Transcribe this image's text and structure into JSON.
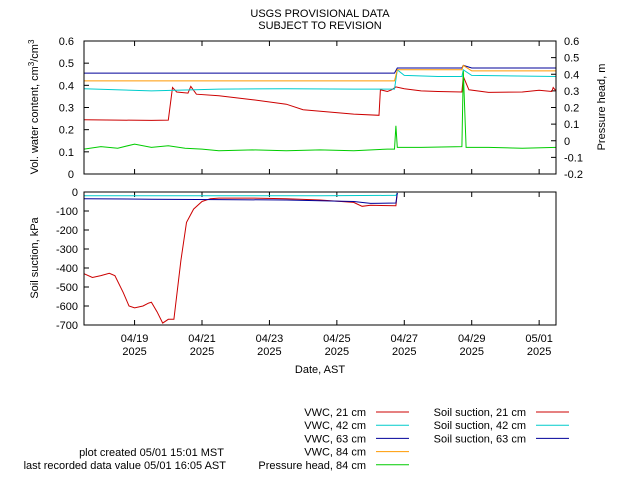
{
  "header": {
    "title_line1": "USGS PROVISIONAL DATA",
    "title_line2": "SUBJECT TO REVISION"
  },
  "footer": {
    "plot_created": "plot created 05/01 15:01 MST",
    "last_value": "last recorded data value 05/01 16:05 AST"
  },
  "chart_data": [
    {
      "type": "line",
      "panel": "top",
      "ylabel": "Vol. water content, cm³/cm³",
      "y2label": "Pressure head, m",
      "ylim": [
        0,
        0.6
      ],
      "y2lim": [
        -0.2,
        0.6
      ],
      "y_ticks": [
        "0",
        "0.1",
        "0.2",
        "0.3",
        "0.4",
        "0.5",
        "0.6"
      ],
      "y2_ticks": [
        "-0.2",
        "-0.1",
        "0",
        "0.1",
        "0.2",
        "0.3",
        "0.4",
        "0.5",
        "0.6"
      ],
      "xlim": [
        "2025-04-17T12:00",
        "2025-05-01T12:00"
      ],
      "grid": false,
      "series": [
        {
          "name": "VWC, 21 cm",
          "axis": "left",
          "color": "#cc0000",
          "points": [
            [
              "2025-04-17T12:00",
              0.245
            ],
            [
              "2025-04-18T12:00",
              0.243
            ],
            [
              "2025-04-19T12:00",
              0.242
            ],
            [
              "2025-04-20T00:00",
              0.243
            ],
            [
              "2025-04-20T03:00",
              0.39
            ],
            [
              "2025-04-20T06:00",
              0.37
            ],
            [
              "2025-04-20T14:00",
              0.365
            ],
            [
              "2025-04-20T16:00",
              0.395
            ],
            [
              "2025-04-20T20:00",
              0.36
            ],
            [
              "2025-04-21T12:00",
              0.353
            ],
            [
              "2025-04-22T12:00",
              0.335
            ],
            [
              "2025-04-23T12:00",
              0.315
            ],
            [
              "2025-04-24T00:00",
              0.29
            ],
            [
              "2025-04-25T12:00",
              0.27
            ],
            [
              "2025-04-26T06:00",
              0.265
            ],
            [
              "2025-04-26T07:00",
              0.38
            ],
            [
              "2025-04-26T12:00",
              0.372
            ],
            [
              "2025-04-26T15:00",
              0.38
            ],
            [
              "2025-04-26T18:00",
              0.393
            ],
            [
              "2025-04-27T00:00",
              0.385
            ],
            [
              "2025-04-27T12:00",
              0.375
            ],
            [
              "2025-04-28T00:00",
              0.372
            ],
            [
              "2025-04-28T17:00",
              0.37
            ],
            [
              "2025-04-28T18:00",
              0.44
            ],
            [
              "2025-04-28T22:00",
              0.38
            ],
            [
              "2025-04-29T12:00",
              0.368
            ],
            [
              "2025-04-30T12:00",
              0.37
            ],
            [
              "2025-05-01T00:00",
              0.378
            ],
            [
              "2025-05-01T09:00",
              0.372
            ],
            [
              "2025-05-01T10:00",
              0.39
            ],
            [
              "2025-05-01T12:00",
              0.375
            ]
          ]
        },
        {
          "name": "VWC, 42 cm",
          "axis": "left",
          "color": "#00cccc",
          "points": [
            [
              "2025-04-17T12:00",
              0.385
            ],
            [
              "2025-04-19T12:00",
              0.375
            ],
            [
              "2025-04-21T12:00",
              0.383
            ],
            [
              "2025-04-23T12:00",
              0.385
            ],
            [
              "2025-04-25T12:00",
              0.383
            ],
            [
              "2025-04-26T17:00",
              0.383
            ],
            [
              "2025-04-26T19:00",
              0.47
            ],
            [
              "2025-04-27T00:00",
              0.445
            ],
            [
              "2025-04-28T00:00",
              0.44
            ],
            [
              "2025-04-28T17:00",
              0.44
            ],
            [
              "2025-04-28T18:00",
              0.47
            ],
            [
              "2025-04-29T00:00",
              0.445
            ],
            [
              "2025-05-01T12:00",
              0.44
            ]
          ]
        },
        {
          "name": "VWC, 63 cm",
          "axis": "left",
          "color": "#000099",
          "points": [
            [
              "2025-04-17T12:00",
              0.455
            ],
            [
              "2025-04-18T06:00",
              0.455
            ],
            [
              "2025-04-25T12:00",
              0.455
            ],
            [
              "2025-04-26T17:00",
              0.455
            ],
            [
              "2025-04-26T19:00",
              0.478
            ],
            [
              "2025-04-28T17:00",
              0.478
            ],
            [
              "2025-04-28T18:00",
              0.49
            ],
            [
              "2025-04-29T00:00",
              0.478
            ],
            [
              "2025-05-01T12:00",
              0.478
            ]
          ]
        },
        {
          "name": "VWC, 84 cm",
          "axis": "left",
          "color": "#ff9900",
          "points": [
            [
              "2025-04-17T12:00",
              0.42
            ],
            [
              "2025-04-26T17:00",
              0.42
            ],
            [
              "2025-04-26T19:00",
              0.47
            ],
            [
              "2025-04-28T17:00",
              0.47
            ],
            [
              "2025-04-28T18:00",
              0.49
            ],
            [
              "2025-04-29T00:00",
              0.465
            ],
            [
              "2025-05-01T12:00",
              0.465
            ]
          ]
        },
        {
          "name": "Pressure head, 84 cm",
          "axis": "right",
          "color": "#00cc00",
          "points": [
            [
              "2025-04-17T12:00",
              -0.05
            ],
            [
              "2025-04-18T00:00",
              -0.035
            ],
            [
              "2025-04-18T12:00",
              -0.045
            ],
            [
              "2025-04-19T00:00",
              -0.02
            ],
            [
              "2025-04-19T12:00",
              -0.04
            ],
            [
              "2025-04-20T00:00",
              -0.03
            ],
            [
              "2025-04-20T12:00",
              -0.045
            ],
            [
              "2025-04-21T00:00",
              -0.05
            ],
            [
              "2025-04-21T12:00",
              -0.06
            ],
            [
              "2025-04-22T12:00",
              -0.055
            ],
            [
              "2025-04-23T12:00",
              -0.06
            ],
            [
              "2025-04-24T12:00",
              -0.055
            ],
            [
              "2025-04-25T12:00",
              -0.06
            ],
            [
              "2025-04-26T12:00",
              -0.05
            ],
            [
              "2025-04-26T17:00",
              -0.05
            ],
            [
              "2025-04-26T18:00",
              0.09
            ],
            [
              "2025-04-26T19:00",
              -0.04
            ],
            [
              "2025-04-27T12:00",
              -0.04
            ],
            [
              "2025-04-28T17:00",
              -0.035
            ],
            [
              "2025-04-28T18:00",
              0.42
            ],
            [
              "2025-04-28T20:00",
              -0.04
            ],
            [
              "2025-04-29T12:00",
              -0.04
            ],
            [
              "2025-04-30T12:00",
              -0.045
            ],
            [
              "2025-05-01T12:00",
              -0.04
            ]
          ]
        }
      ]
    },
    {
      "type": "line",
      "panel": "bottom",
      "ylabel": "Soil suction, kPa",
      "xlabel": "Date, AST",
      "ylim": [
        -700,
        0
      ],
      "y_ticks": [
        "0",
        "-100",
        "-200",
        "-300",
        "-400",
        "-500",
        "-600",
        "-700"
      ],
      "xlim": [
        "2025-04-17T12:00",
        "2025-05-01T12:00"
      ],
      "x_ticks": [
        {
          "date": "2025-04-19",
          "line1": "04/19",
          "line2": "2025"
        },
        {
          "date": "2025-04-21",
          "line1": "04/21",
          "line2": "2025"
        },
        {
          "date": "2025-04-23",
          "line1": "04/23",
          "line2": "2025"
        },
        {
          "date": "2025-04-25",
          "line1": "04/25",
          "line2": "2025"
        },
        {
          "date": "2025-04-27",
          "line1": "04/27",
          "line2": "2025"
        },
        {
          "date": "2025-04-29",
          "line1": "04/29",
          "line2": "2025"
        },
        {
          "date": "2025-05-01",
          "line1": "05/01",
          "line2": "2025"
        }
      ],
      "grid": false,
      "series": [
        {
          "name": "Soil suction, 21 cm",
          "color": "#cc0000",
          "points": [
            [
              "2025-04-17T12:00",
              -430
            ],
            [
              "2025-04-17T18:00",
              -450
            ],
            [
              "2025-04-18T00:00",
              -440
            ],
            [
              "2025-04-18T06:00",
              -428
            ],
            [
              "2025-04-18T10:00",
              -440
            ],
            [
              "2025-04-18T16:00",
              -530
            ],
            [
              "2025-04-18T20:00",
              -600
            ],
            [
              "2025-04-19T00:00",
              -610
            ],
            [
              "2025-04-19T06:00",
              -600
            ],
            [
              "2025-04-19T10:00",
              -585
            ],
            [
              "2025-04-19T12:00",
              -580
            ],
            [
              "2025-04-19T16:00",
              -630
            ],
            [
              "2025-04-19T20:00",
              -690
            ],
            [
              "2025-04-20T00:00",
              -670
            ],
            [
              "2025-04-20T04:00",
              -670
            ],
            [
              "2025-04-20T09:00",
              -360
            ],
            [
              "2025-04-20T13:00",
              -160
            ],
            [
              "2025-04-20T18:00",
              -90
            ],
            [
              "2025-04-21T00:00",
              -50
            ],
            [
              "2025-04-21T06:00",
              -35
            ],
            [
              "2025-04-21T12:00",
              -32
            ],
            [
              "2025-04-22T12:00",
              -32
            ],
            [
              "2025-04-23T12:00",
              -35
            ],
            [
              "2025-04-24T12:00",
              -42
            ],
            [
              "2025-04-25T12:00",
              -55
            ],
            [
              "2025-04-25T18:00",
              -75
            ],
            [
              "2025-04-26T00:00",
              -70
            ],
            [
              "2025-04-26T18:00",
              -72
            ],
            [
              "2025-04-26T19:00",
              -5
            ]
          ]
        },
        {
          "name": "Soil suction, 42 cm",
          "color": "#00cccc",
          "points": [
            [
              "2025-04-17T12:00",
              -20
            ],
            [
              "2025-04-20T12:00",
              -20
            ],
            [
              "2025-04-22T12:00",
              -20
            ],
            [
              "2025-04-24T12:00",
              -20
            ],
            [
              "2025-04-26T12:00",
              -18
            ],
            [
              "2025-04-26T18:00",
              -18
            ],
            [
              "2025-04-26T19:00",
              -5
            ]
          ]
        },
        {
          "name": "Soil suction, 63 cm",
          "color": "#000099",
          "points": [
            [
              "2025-04-17T12:00",
              -35
            ],
            [
              "2025-04-19T12:00",
              -38
            ],
            [
              "2025-04-21T12:00",
              -40
            ],
            [
              "2025-04-23T12:00",
              -42
            ],
            [
              "2025-04-25T12:00",
              -50
            ],
            [
              "2025-04-26T00:00",
              -60
            ],
            [
              "2025-04-26T18:00",
              -58
            ],
            [
              "2025-04-26T19:00",
              -5
            ]
          ]
        }
      ]
    }
  ]
}
